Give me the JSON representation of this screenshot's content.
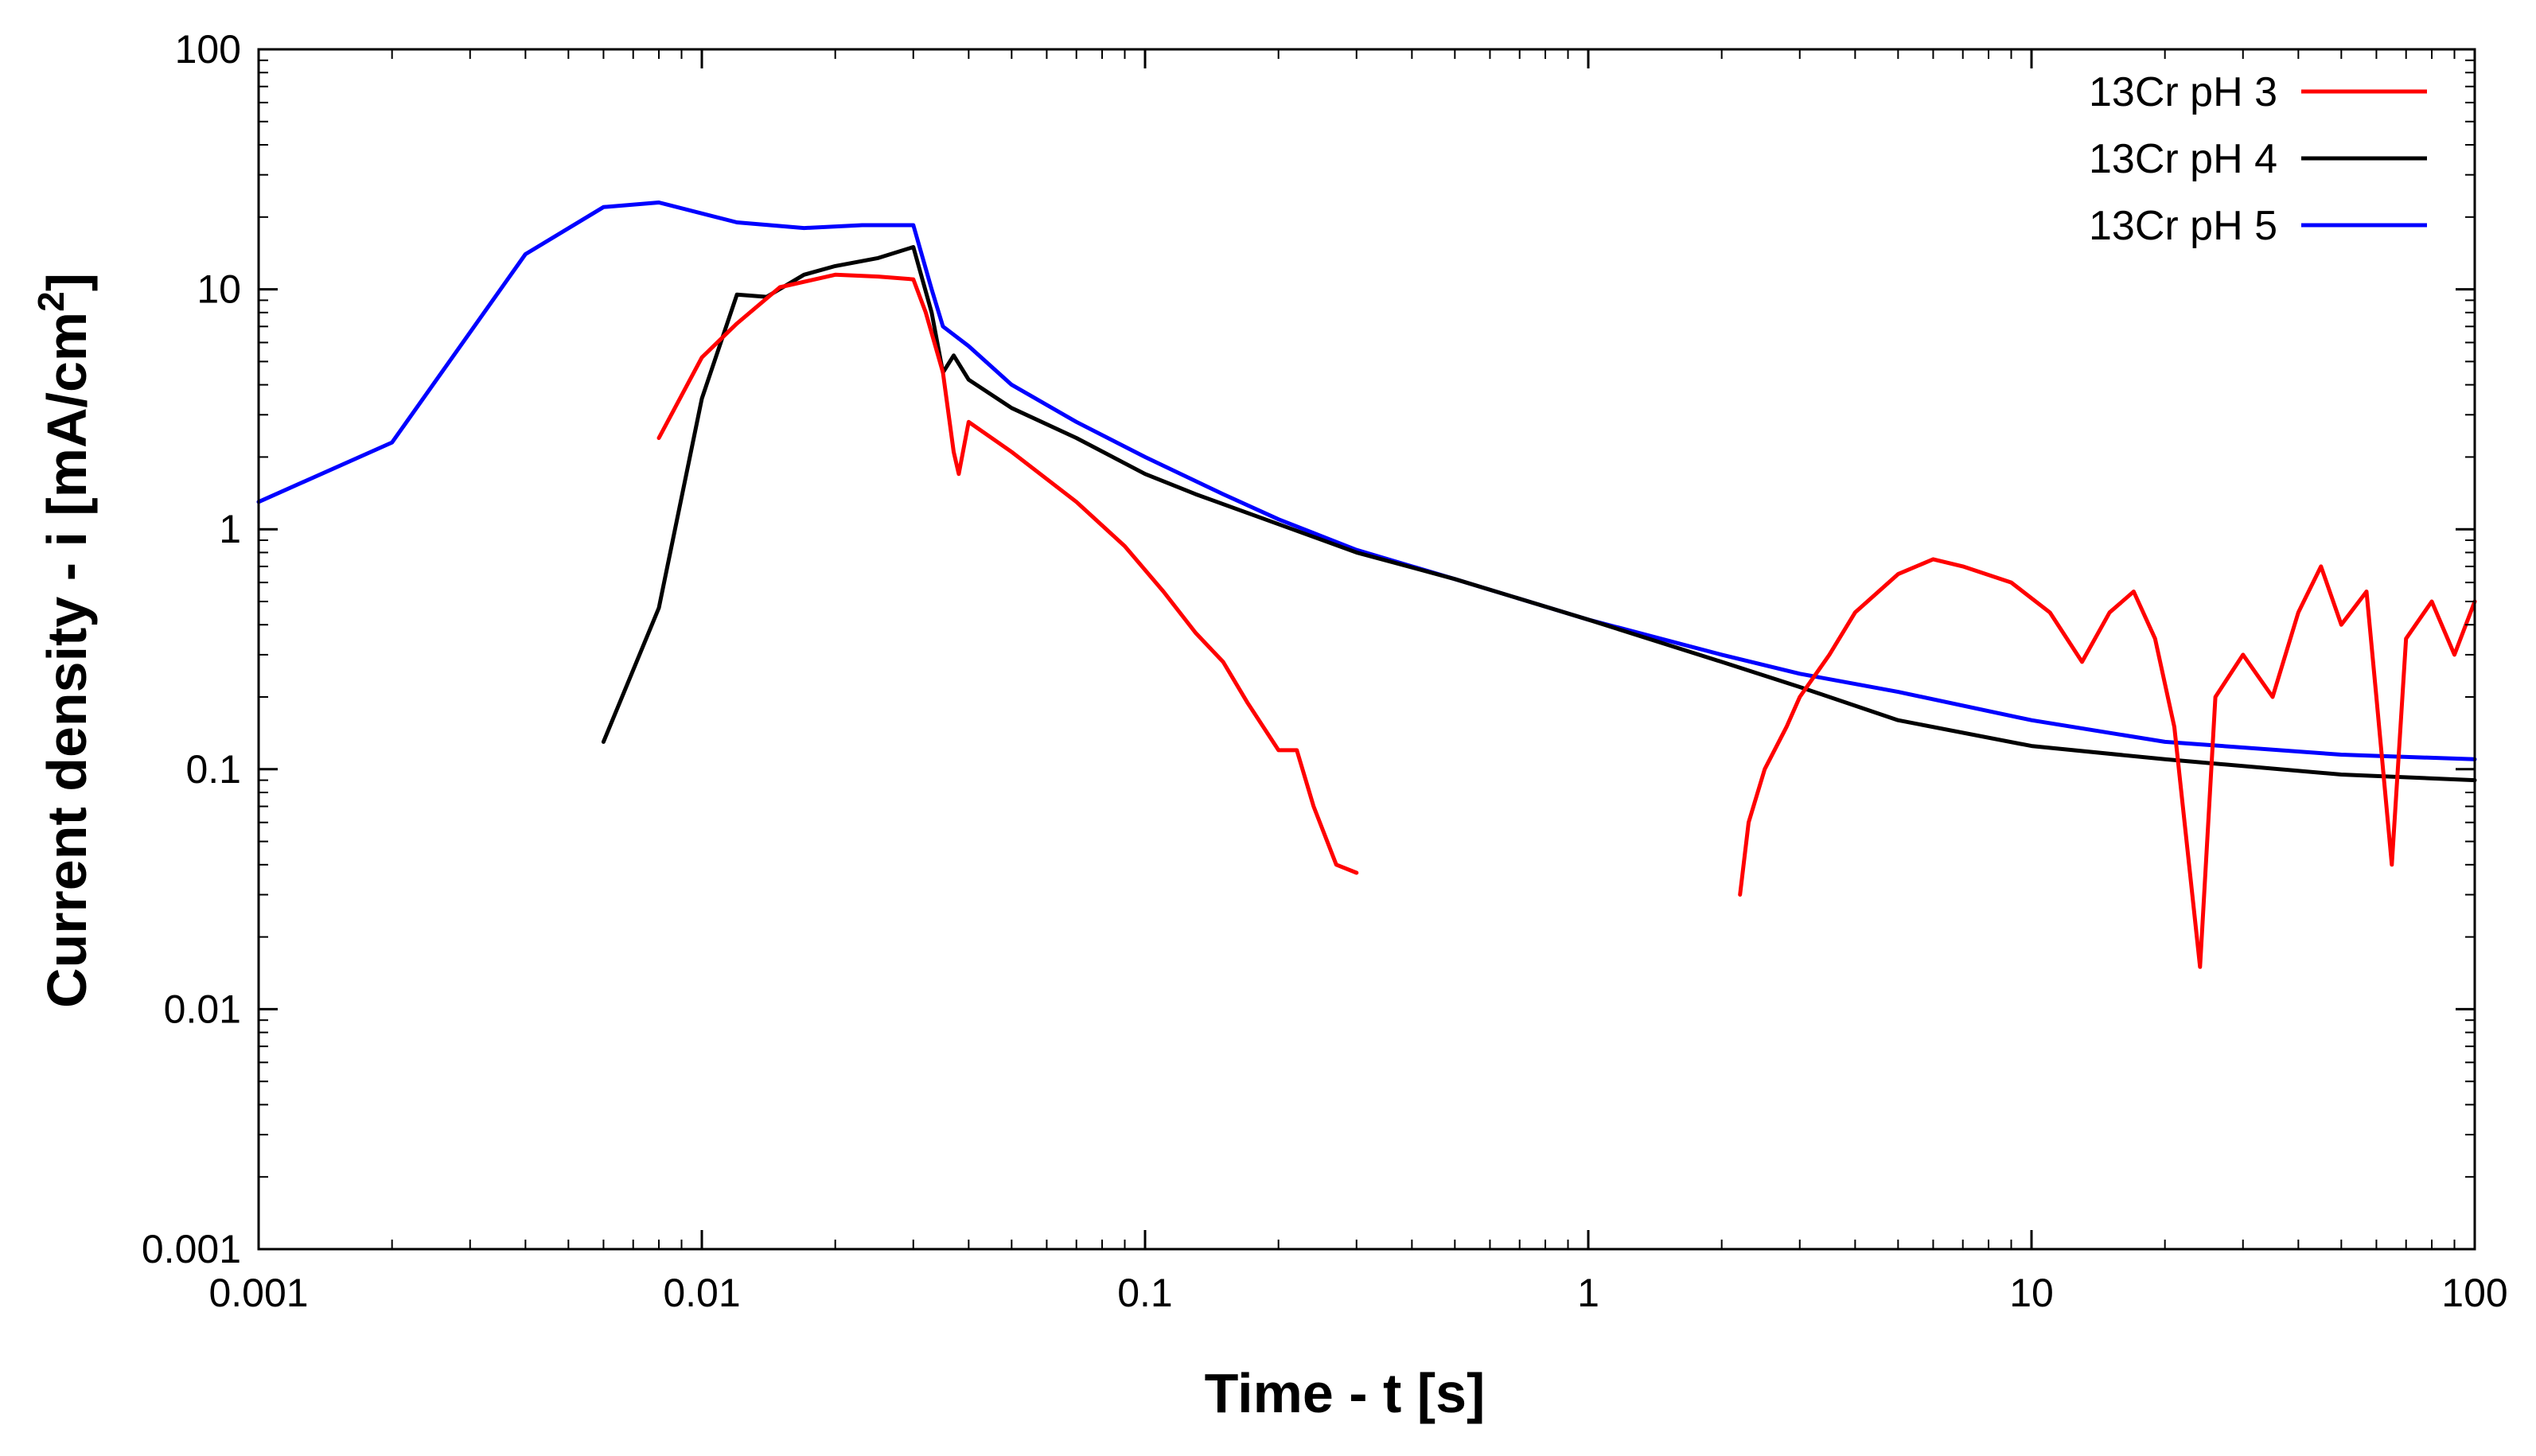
{
  "chart_data": {
    "type": "line",
    "title": "",
    "xlabel": "Time - t [s]",
    "ylabel_main": "Current density - i [mA/cm",
    "ylabel_sup": "2",
    "ylabel_close": "]",
    "xscale": "log",
    "yscale": "log",
    "xlim": [
      0.001,
      100
    ],
    "ylim": [
      0.001,
      100
    ],
    "x_ticks": [
      0.001,
      0.01,
      0.1,
      1,
      10,
      100
    ],
    "x_tick_labels": [
      "0.001",
      "0.01",
      "0.1",
      "1",
      "10",
      "100"
    ],
    "y_ticks": [
      0.001,
      0.01,
      0.1,
      1,
      10,
      100
    ],
    "y_tick_labels": [
      "0.001",
      "0.01",
      "0.1",
      "1",
      "10",
      "100"
    ],
    "grid": false,
    "legend_position": "top-right",
    "series": [
      {
        "name": "13Cr pH 3",
        "color": "#ff0000",
        "segments": [
          [
            [
              0.008,
              2.4
            ],
            [
              0.01,
              5.2
            ],
            [
              0.012,
              7.2
            ],
            [
              0.015,
              10.2
            ],
            [
              0.02,
              11.5
            ],
            [
              0.025,
              11.3
            ],
            [
              0.03,
              11.0
            ],
            [
              0.032,
              8.0
            ],
            [
              0.035,
              4.5
            ],
            [
              0.037,
              2.1
            ],
            [
              0.038,
              1.7
            ],
            [
              0.04,
              2.8
            ],
            [
              0.05,
              2.1
            ],
            [
              0.07,
              1.3
            ],
            [
              0.09,
              0.85
            ],
            [
              0.11,
              0.55
            ],
            [
              0.13,
              0.37
            ],
            [
              0.15,
              0.28
            ],
            [
              0.17,
              0.19
            ],
            [
              0.2,
              0.12
            ],
            [
              0.22,
              0.12
            ],
            [
              0.24,
              0.07
            ],
            [
              0.27,
              0.04
            ],
            [
              0.3,
              0.037
            ]
          ],
          [
            [
              2.2,
              0.03
            ],
            [
              2.3,
              0.06
            ],
            [
              2.5,
              0.1
            ],
            [
              2.8,
              0.15
            ],
            [
              3.0,
              0.2
            ],
            [
              3.5,
              0.3
            ],
            [
              4.0,
              0.45
            ],
            [
              5.0,
              0.65
            ],
            [
              6.0,
              0.75
            ],
            [
              7.0,
              0.7
            ],
            [
              9.0,
              0.6
            ],
            [
              11.0,
              0.45
            ],
            [
              13.0,
              0.28
            ],
            [
              15.0,
              0.45
            ],
            [
              17.0,
              0.55
            ],
            [
              19.0,
              0.35
            ],
            [
              21.0,
              0.15
            ],
            [
              24.0,
              0.015
            ],
            [
              26.0,
              0.2
            ],
            [
              30.0,
              0.3
            ],
            [
              35.0,
              0.2
            ],
            [
              40.0,
              0.45
            ],
            [
              45.0,
              0.7
            ],
            [
              50.0,
              0.4
            ],
            [
              57.0,
              0.55
            ],
            [
              60.0,
              0.2
            ],
            [
              65.0,
              0.04
            ],
            [
              70.0,
              0.35
            ],
            [
              80.0,
              0.5
            ],
            [
              90.0,
              0.3
            ],
            [
              100.0,
              0.5
            ]
          ]
        ]
      },
      {
        "name": "13Cr pH 4",
        "color": "#000000",
        "segments": [
          [
            [
              0.006,
              0.13
            ],
            [
              0.008,
              0.47
            ],
            [
              0.01,
              3.5
            ],
            [
              0.012,
              9.5
            ],
            [
              0.014,
              9.3
            ],
            [
              0.017,
              11.5
            ],
            [
              0.02,
              12.5
            ],
            [
              0.025,
              13.5
            ],
            [
              0.03,
              15.0
            ],
            [
              0.033,
              8.0
            ],
            [
              0.035,
              4.5
            ],
            [
              0.037,
              5.3
            ],
            [
              0.04,
              4.2
            ],
            [
              0.05,
              3.2
            ],
            [
              0.07,
              2.4
            ],
            [
              0.1,
              1.7
            ],
            [
              0.13,
              1.4
            ],
            [
              0.2,
              1.05
            ],
            [
              0.3,
              0.8
            ],
            [
              0.5,
              0.62
            ],
            [
              1.0,
              0.42
            ],
            [
              2.0,
              0.28
            ],
            [
              3.0,
              0.22
            ],
            [
              5.0,
              0.16
            ],
            [
              10.0,
              0.125
            ],
            [
              20.0,
              0.11
            ],
            [
              50.0,
              0.095
            ],
            [
              100.0,
              0.09
            ]
          ]
        ]
      },
      {
        "name": "13Cr pH 5",
        "color": "#0000ff",
        "segments": [
          [
            [
              0.001,
              1.3
            ],
            [
              0.002,
              2.3
            ],
            [
              0.004,
              14.0
            ],
            [
              0.006,
              22.0
            ],
            [
              0.008,
              23.0
            ],
            [
              0.012,
              19.0
            ],
            [
              0.017,
              18.0
            ],
            [
              0.023,
              18.5
            ],
            [
              0.03,
              18.5
            ],
            [
              0.033,
              10.0
            ],
            [
              0.035,
              7.0
            ],
            [
              0.04,
              5.8
            ],
            [
              0.05,
              4.0
            ],
            [
              0.07,
              2.8
            ],
            [
              0.1,
              2.0
            ],
            [
              0.15,
              1.4
            ],
            [
              0.2,
              1.1
            ],
            [
              0.3,
              0.82
            ],
            [
              0.5,
              0.62
            ],
            [
              1.0,
              0.42
            ],
            [
              2.0,
              0.3
            ],
            [
              3.0,
              0.25
            ],
            [
              5.0,
              0.21
            ],
            [
              10.0,
              0.16
            ],
            [
              20.0,
              0.13
            ],
            [
              50.0,
              0.115
            ],
            [
              100.0,
              0.11
            ]
          ]
        ]
      }
    ]
  }
}
